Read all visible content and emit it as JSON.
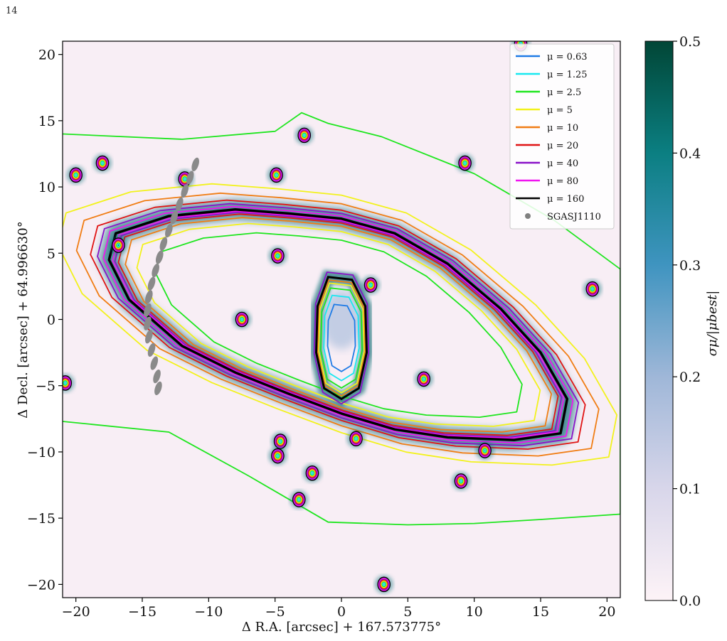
{
  "page": {
    "number": "14"
  },
  "chart_data": {
    "type": "heatmap",
    "description_visible": "contour map of magnification with uncertainty colour map",
    "xlabel": "Δ R.A. [arcsec] + 167.573775°",
    "ylabel": "Δ Decl. [arcsec] + 64.996630°",
    "xlim": [
      -21,
      21
    ],
    "ylim": [
      -21,
      21
    ],
    "xticks": [
      -20,
      -15,
      -10,
      -5,
      0,
      5,
      10,
      15,
      20
    ],
    "xtick_labels": [
      "−20",
      "−15",
      "−10",
      "−5",
      "0",
      "5",
      "10",
      "15",
      "20"
    ],
    "yticks": [
      -20,
      -15,
      -10,
      -5,
      0,
      5,
      10,
      15,
      20
    ],
    "ytick_labels": [
      "−20",
      "−15",
      "−10",
      "−5",
      "0",
      "5",
      "10",
      "15",
      "20"
    ],
    "colorbar": {
      "label": "σμ/|μbest|",
      "range": [
        0,
        0.5
      ],
      "ticks": [
        0,
        0.1,
        0.2,
        0.3,
        0.4,
        0.5
      ],
      "tick_labels": [
        "0.0",
        "0.1",
        "0.2",
        "0.3",
        "0.4",
        "0.5"
      ],
      "colormap_stops": [
        "#fdf3f7",
        "#d8d6ea",
        "#9fb7d8",
        "#3f94c0",
        "#0b7f82",
        "#014636"
      ]
    },
    "legend": {
      "position": "upper right",
      "entries": [
        {
          "label": "μ = 0.63",
          "color": "#1e7be6",
          "kind": "line"
        },
        {
          "label": "μ = 1.25",
          "color": "#18e8f0",
          "kind": "line"
        },
        {
          "label": "μ = 2.5",
          "color": "#1ee61e",
          "kind": "line"
        },
        {
          "label": "μ = 5",
          "color": "#f2f21c",
          "kind": "line"
        },
        {
          "label": "μ = 10",
          "color": "#f07d14",
          "kind": "line"
        },
        {
          "label": "μ = 20",
          "color": "#e01414",
          "kind": "line"
        },
        {
          "label": "μ = 40",
          "color": "#8a12c8",
          "kind": "line"
        },
        {
          "label": "μ = 80",
          "color": "#f014f0",
          "kind": "line"
        },
        {
          "label": "μ = 160",
          "color": "#000000",
          "kind": "line"
        },
        {
          "label": "SGASJ1110",
          "color": "#808080",
          "kind": "marker"
        }
      ]
    },
    "critical_curve": {
      "points": [
        [
          -17,
          6.5
        ],
        [
          -13,
          7.8
        ],
        [
          -8,
          8.3
        ],
        [
          -4,
          8.0
        ],
        [
          0,
          7.6
        ],
        [
          4,
          6.5
        ],
        [
          8,
          4.2
        ],
        [
          12,
          0.8
        ],
        [
          15,
          -2.5
        ],
        [
          17,
          -6
        ],
        [
          16.5,
          -8.6
        ],
        [
          13,
          -9.1
        ],
        [
          8,
          -8.9
        ],
        [
          4,
          -8.3
        ],
        [
          0,
          -7.1
        ],
        [
          -4,
          -5.6
        ],
        [
          -8,
          -4.0
        ],
        [
          -12,
          -2.0
        ],
        [
          -16,
          1.5
        ],
        [
          -17.5,
          4.5
        ]
      ],
      "color": "#000000"
    },
    "inner_curve": {
      "points": [
        [
          -1,
          3.2
        ],
        [
          0.8,
          3.0
        ],
        [
          1.8,
          1.0
        ],
        [
          1.9,
          -2.5
        ],
        [
          1.3,
          -5.2
        ],
        [
          0,
          -6.0
        ],
        [
          -1.3,
          -5.2
        ],
        [
          -1.9,
          -2.5
        ],
        [
          -1.8,
          1.0
        ]
      ],
      "color": "#000000"
    },
    "outer_contour": {
      "points": [
        [
          -21,
          14
        ],
        [
          -12,
          13.6
        ],
        [
          -5,
          14.2
        ],
        [
          -3,
          15.6
        ],
        [
          -1,
          14.8
        ],
        [
          3,
          13.8
        ],
        [
          10,
          11
        ],
        [
          16,
          7.5
        ],
        [
          21,
          3.8
        ],
        [
          21,
          -14.7
        ],
        [
          15,
          -15.1
        ],
        [
          10,
          -15.4
        ],
        [
          5,
          -15.5
        ],
        [
          -1,
          -15.3
        ],
        [
          -7,
          -11.8
        ],
        [
          -13,
          -8.5
        ],
        [
          -21,
          -7.7
        ]
      ],
      "color": "#1ee61e"
    },
    "compact_sources": [
      {
        "x": -20,
        "y": 10.9
      },
      {
        "x": -18,
        "y": 11.8
      },
      {
        "x": -16.8,
        "y": 5.6
      },
      {
        "x": -11.8,
        "y": 10.6
      },
      {
        "x": -4.9,
        "y": 10.9
      },
      {
        "x": -2.8,
        "y": 13.9
      },
      {
        "x": 9.3,
        "y": 11.8
      },
      {
        "x": -4.8,
        "y": 4.8
      },
      {
        "x": -7.5,
        "y": 0
      },
      {
        "x": 2.2,
        "y": 2.6
      },
      {
        "x": 6.2,
        "y": -4.5
      },
      {
        "x": 18.9,
        "y": 2.3
      },
      {
        "x": -20.8,
        "y": -4.8
      },
      {
        "x": -4.6,
        "y": -9.2
      },
      {
        "x": -4.8,
        "y": -10.3
      },
      {
        "x": 1.1,
        "y": -9
      },
      {
        "x": -2.2,
        "y": -11.6
      },
      {
        "x": 9,
        "y": -12.2
      },
      {
        "x": 10.8,
        "y": -9.9
      },
      {
        "x": -3.2,
        "y": -13.6
      },
      {
        "x": 3.2,
        "y": -20
      },
      {
        "x": 13.5,
        "y": 20.8
      }
    ],
    "arc_points": [
      {
        "x": -11.0,
        "y": 11.7
      },
      {
        "x": -11.4,
        "y": 10.7
      },
      {
        "x": -11.8,
        "y": 9.7
      },
      {
        "x": -12.2,
        "y": 8.7
      },
      {
        "x": -12.6,
        "y": 7.7
      },
      {
        "x": -13.0,
        "y": 6.7
      },
      {
        "x": -13.4,
        "y": 5.7
      },
      {
        "x": -13.7,
        "y": 4.7
      },
      {
        "x": -14.0,
        "y": 3.7
      },
      {
        "x": -14.3,
        "y": 2.7
      },
      {
        "x": -14.5,
        "y": 1.7
      },
      {
        "x": -14.6,
        "y": 0.7
      },
      {
        "x": -14.6,
        "y": -0.3
      },
      {
        "x": -14.5,
        "y": -1.3
      },
      {
        "x": -14.3,
        "y": -2.3
      },
      {
        "x": -14.1,
        "y": -3.3
      },
      {
        "x": -13.9,
        "y": -4.3
      },
      {
        "x": -13.8,
        "y": -5.2
      }
    ]
  }
}
